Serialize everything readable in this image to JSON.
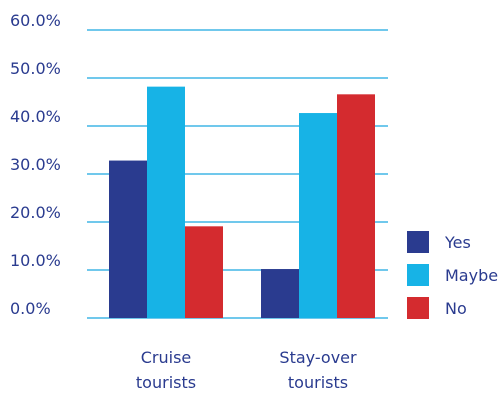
{
  "chart_data": {
    "type": "bar",
    "title": "",
    "xlabel": "",
    "ylabel": "",
    "categories": [
      [
        "Cruise",
        "tourists"
      ],
      [
        "Stay-over",
        "tourists"
      ]
    ],
    "series": [
      {
        "name": "Yes",
        "values": [
          32.8,
          10.2
        ],
        "color": "#2a3b8f"
      },
      {
        "name": "Maybe",
        "values": [
          48.2,
          42.7
        ],
        "color": "#17b3e6"
      },
      {
        "name": "No",
        "values": [
          19.1,
          46.6
        ],
        "color": "#d42b2f"
      }
    ],
    "ylim": [
      0,
      60
    ],
    "yticks": [
      0,
      10,
      20,
      30,
      40,
      50,
      60
    ],
    "ytick_labels": [
      "0.0%",
      "10.0%",
      "20.0%",
      "30.0%",
      "40.0%",
      "50.0%",
      "60.0%"
    ],
    "grid": true,
    "grid_color": "#1aa7e0",
    "text_color": "#2a3b8f",
    "legend_position": "right"
  }
}
